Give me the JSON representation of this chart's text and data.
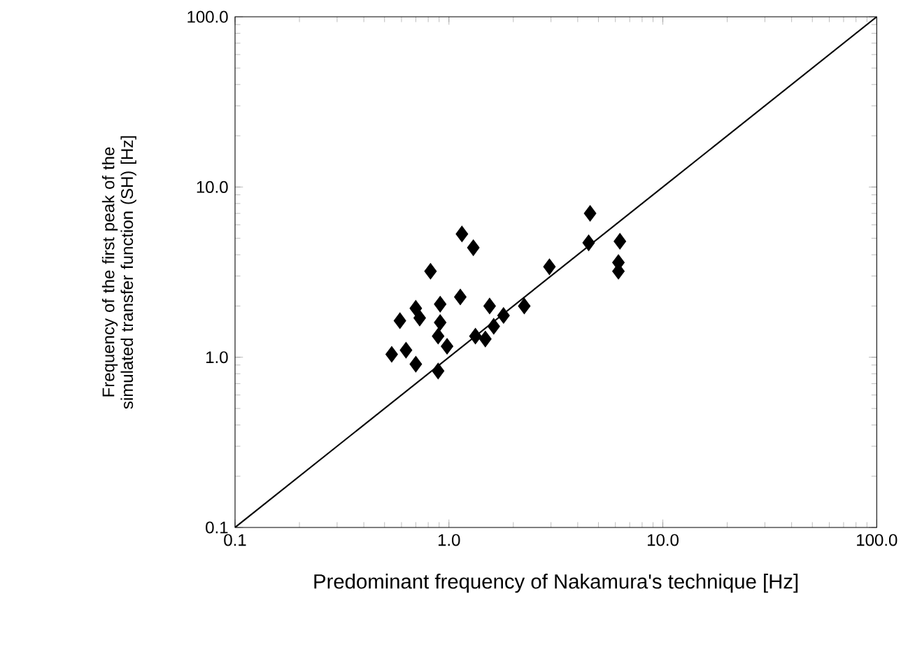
{
  "chart_data": {
    "type": "scatter",
    "xlabel": "Predominant frequency of Nakamura's technique [Hz]",
    "ylabel": "Frequency of the first peak of the simulated transfer function (SH) [Hz]",
    "log": "xy",
    "xlim": [
      0.1,
      100
    ],
    "ylim": [
      0.1,
      100
    ],
    "xticks": [
      0.1,
      {
        "value": 1,
        "label": "1.0"
      },
      {
        "value": 10,
        "label": "10.0"
      },
      {
        "value": 100,
        "label": "100.0"
      }
    ],
    "yticks": [
      0.1,
      {
        "value": 1,
        "label": "1.0"
      },
      {
        "value": 10,
        "label": "10.0"
      },
      {
        "value": 100,
        "label": "100.0"
      }
    ],
    "grid": false,
    "marker": "diamond",
    "series": [
      {
        "color": "#000000",
        "x": [
          4.57,
          4.5,
          6.3,
          6.2,
          6.2,
          2.95,
          1.15,
          1.3,
          0.82,
          1.13,
          0.7,
          0.91,
          0.59,
          1.55,
          1.8,
          2.25,
          1.62,
          1.33,
          1.48,
          0.91,
          0.89,
          0.54,
          0.63,
          0.7,
          0.89,
          0.98,
          0.73
        ],
        "values": [
          7.0,
          4.7,
          4.8,
          3.6,
          3.2,
          3.4,
          5.3,
          4.4,
          3.2,
          2.26,
          1.94,
          2.05,
          1.64,
          2.0,
          1.76,
          2.0,
          1.52,
          1.33,
          1.28,
          1.6,
          1.33,
          1.04,
          1.1,
          0.91,
          0.83,
          1.16,
          1.7
        ]
      },
      {
        "type": "line",
        "color": "#000000",
        "x": [
          0.1,
          100
        ],
        "values": [
          0.1,
          100
        ],
        "marker": "none",
        "line_style": "solid"
      }
    ]
  }
}
